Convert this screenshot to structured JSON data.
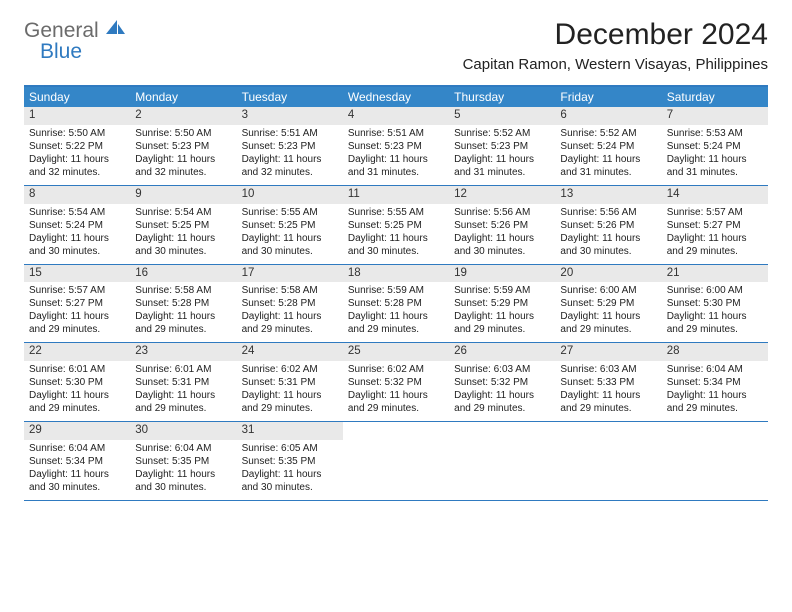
{
  "logo": {
    "word1": "General",
    "word2": "Blue"
  },
  "title": "December 2024",
  "location": "Capitan Ramon, Western Visayas, Philippines",
  "colors": {
    "accent": "#3486c8",
    "border": "#2f7ac0",
    "stripe": "#e9e9e9",
    "logo_gray": "#6b6b6b",
    "logo_blue": "#2f7ac0",
    "text": "#222222",
    "bg": "#ffffff"
  },
  "weekdays": [
    "Sunday",
    "Monday",
    "Tuesday",
    "Wednesday",
    "Thursday",
    "Friday",
    "Saturday"
  ],
  "weeks": [
    [
      {
        "n": "1",
        "sr": "Sunrise: 5:50 AM",
        "ss": "Sunset: 5:22 PM",
        "dl": "Daylight: 11 hours and 32 minutes."
      },
      {
        "n": "2",
        "sr": "Sunrise: 5:50 AM",
        "ss": "Sunset: 5:23 PM",
        "dl": "Daylight: 11 hours and 32 minutes."
      },
      {
        "n": "3",
        "sr": "Sunrise: 5:51 AM",
        "ss": "Sunset: 5:23 PM",
        "dl": "Daylight: 11 hours and 32 minutes."
      },
      {
        "n": "4",
        "sr": "Sunrise: 5:51 AM",
        "ss": "Sunset: 5:23 PM",
        "dl": "Daylight: 11 hours and 31 minutes."
      },
      {
        "n": "5",
        "sr": "Sunrise: 5:52 AM",
        "ss": "Sunset: 5:23 PM",
        "dl": "Daylight: 11 hours and 31 minutes."
      },
      {
        "n": "6",
        "sr": "Sunrise: 5:52 AM",
        "ss": "Sunset: 5:24 PM",
        "dl": "Daylight: 11 hours and 31 minutes."
      },
      {
        "n": "7",
        "sr": "Sunrise: 5:53 AM",
        "ss": "Sunset: 5:24 PM",
        "dl": "Daylight: 11 hours and 31 minutes."
      }
    ],
    [
      {
        "n": "8",
        "sr": "Sunrise: 5:54 AM",
        "ss": "Sunset: 5:24 PM",
        "dl": "Daylight: 11 hours and 30 minutes."
      },
      {
        "n": "9",
        "sr": "Sunrise: 5:54 AM",
        "ss": "Sunset: 5:25 PM",
        "dl": "Daylight: 11 hours and 30 minutes."
      },
      {
        "n": "10",
        "sr": "Sunrise: 5:55 AM",
        "ss": "Sunset: 5:25 PM",
        "dl": "Daylight: 11 hours and 30 minutes."
      },
      {
        "n": "11",
        "sr": "Sunrise: 5:55 AM",
        "ss": "Sunset: 5:25 PM",
        "dl": "Daylight: 11 hours and 30 minutes."
      },
      {
        "n": "12",
        "sr": "Sunrise: 5:56 AM",
        "ss": "Sunset: 5:26 PM",
        "dl": "Daylight: 11 hours and 30 minutes."
      },
      {
        "n": "13",
        "sr": "Sunrise: 5:56 AM",
        "ss": "Sunset: 5:26 PM",
        "dl": "Daylight: 11 hours and 30 minutes."
      },
      {
        "n": "14",
        "sr": "Sunrise: 5:57 AM",
        "ss": "Sunset: 5:27 PM",
        "dl": "Daylight: 11 hours and 29 minutes."
      }
    ],
    [
      {
        "n": "15",
        "sr": "Sunrise: 5:57 AM",
        "ss": "Sunset: 5:27 PM",
        "dl": "Daylight: 11 hours and 29 minutes."
      },
      {
        "n": "16",
        "sr": "Sunrise: 5:58 AM",
        "ss": "Sunset: 5:28 PM",
        "dl": "Daylight: 11 hours and 29 minutes."
      },
      {
        "n": "17",
        "sr": "Sunrise: 5:58 AM",
        "ss": "Sunset: 5:28 PM",
        "dl": "Daylight: 11 hours and 29 minutes."
      },
      {
        "n": "18",
        "sr": "Sunrise: 5:59 AM",
        "ss": "Sunset: 5:28 PM",
        "dl": "Daylight: 11 hours and 29 minutes."
      },
      {
        "n": "19",
        "sr": "Sunrise: 5:59 AM",
        "ss": "Sunset: 5:29 PM",
        "dl": "Daylight: 11 hours and 29 minutes."
      },
      {
        "n": "20",
        "sr": "Sunrise: 6:00 AM",
        "ss": "Sunset: 5:29 PM",
        "dl": "Daylight: 11 hours and 29 minutes."
      },
      {
        "n": "21",
        "sr": "Sunrise: 6:00 AM",
        "ss": "Sunset: 5:30 PM",
        "dl": "Daylight: 11 hours and 29 minutes."
      }
    ],
    [
      {
        "n": "22",
        "sr": "Sunrise: 6:01 AM",
        "ss": "Sunset: 5:30 PM",
        "dl": "Daylight: 11 hours and 29 minutes."
      },
      {
        "n": "23",
        "sr": "Sunrise: 6:01 AM",
        "ss": "Sunset: 5:31 PM",
        "dl": "Daylight: 11 hours and 29 minutes."
      },
      {
        "n": "24",
        "sr": "Sunrise: 6:02 AM",
        "ss": "Sunset: 5:31 PM",
        "dl": "Daylight: 11 hours and 29 minutes."
      },
      {
        "n": "25",
        "sr": "Sunrise: 6:02 AM",
        "ss": "Sunset: 5:32 PM",
        "dl": "Daylight: 11 hours and 29 minutes."
      },
      {
        "n": "26",
        "sr": "Sunrise: 6:03 AM",
        "ss": "Sunset: 5:32 PM",
        "dl": "Daylight: 11 hours and 29 minutes."
      },
      {
        "n": "27",
        "sr": "Sunrise: 6:03 AM",
        "ss": "Sunset: 5:33 PM",
        "dl": "Daylight: 11 hours and 29 minutes."
      },
      {
        "n": "28",
        "sr": "Sunrise: 6:04 AM",
        "ss": "Sunset: 5:34 PM",
        "dl": "Daylight: 11 hours and 29 minutes."
      }
    ],
    [
      {
        "n": "29",
        "sr": "Sunrise: 6:04 AM",
        "ss": "Sunset: 5:34 PM",
        "dl": "Daylight: 11 hours and 30 minutes."
      },
      {
        "n": "30",
        "sr": "Sunrise: 6:04 AM",
        "ss": "Sunset: 5:35 PM",
        "dl": "Daylight: 11 hours and 30 minutes."
      },
      {
        "n": "31",
        "sr": "Sunrise: 6:05 AM",
        "ss": "Sunset: 5:35 PM",
        "dl": "Daylight: 11 hours and 30 minutes."
      },
      null,
      null,
      null,
      null
    ]
  ]
}
